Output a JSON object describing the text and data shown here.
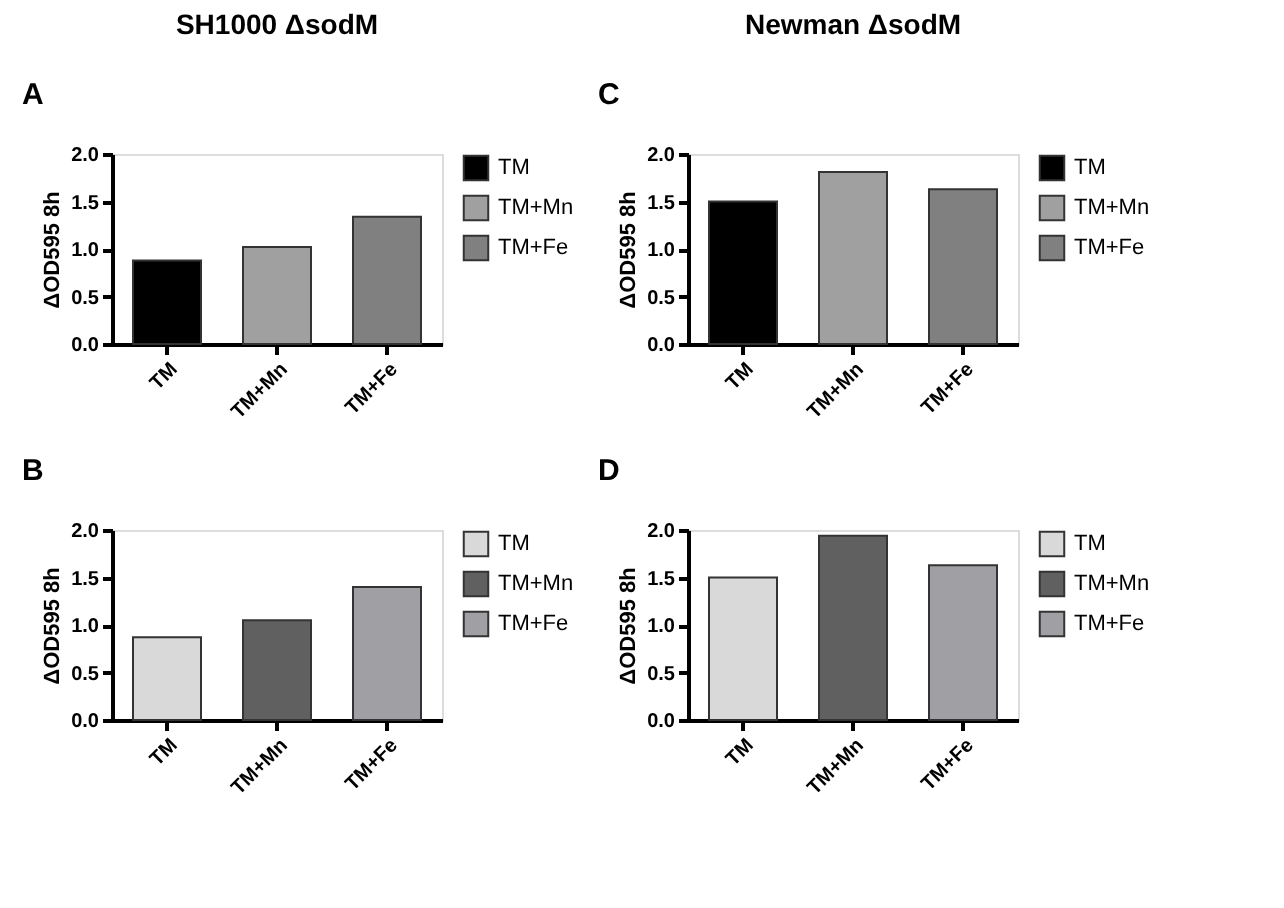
{
  "chart_data": [
    {
      "type": "bar",
      "title": "SH1000 ΔsodM",
      "annotations": [
        "A"
      ],
      "ylabel": "ΔOD595 8h",
      "categories": [
        "TM",
        "TM+Mn",
        "TM+Fe"
      ],
      "ylim": [
        0,
        2
      ],
      "yticks": [
        {
          "value": 0,
          "label": "0.0"
        },
        {
          "value": 0.5,
          "label": "0.5"
        },
        {
          "value": 1,
          "label": "1.0"
        },
        {
          "value": 1.5,
          "label": "1.5"
        },
        {
          "value": 2,
          "label": "2.0"
        }
      ],
      "grid": false,
      "legend": "right",
      "series": [
        {
          "name": "TM",
          "color": "#000000",
          "values": [
            0.88,
            null,
            null
          ]
        },
        {
          "name": "TM+Mn",
          "color": "#a0a0a0",
          "values": [
            null,
            1.02,
            null
          ]
        },
        {
          "name": "TM+Fe",
          "color": "#808080",
          "values": [
            null,
            null,
            1.34
          ]
        }
      ]
    },
    {
      "type": "bar",
      "annotations": [
        "B"
      ],
      "ylabel": "ΔOD595 8h",
      "categories": [
        "TM",
        "TM+Mn",
        "TM+Fe"
      ],
      "ylim": [
        0,
        2
      ],
      "yticks": [
        {
          "value": 0,
          "label": "0.0"
        },
        {
          "value": 0.5,
          "label": "0.5"
        },
        {
          "value": 1,
          "label": "1.0"
        },
        {
          "value": 1.5,
          "label": "1.5"
        },
        {
          "value": 2,
          "label": "2.0"
        }
      ],
      "grid": false,
      "legend": "right",
      "series": [
        {
          "name": "TM",
          "color": "#d9d9d9",
          "values": [
            0.87,
            null,
            null
          ]
        },
        {
          "name": "TM+Mn",
          "color": "#606060",
          "values": [
            null,
            1.05,
            null
          ]
        },
        {
          "name": "TM+Fe",
          "color": "#a0a0a4",
          "values": [
            null,
            null,
            1.4
          ]
        }
      ]
    },
    {
      "type": "bar",
      "title": "Newman ΔsodM",
      "annotations": [
        "C"
      ],
      "ylabel": "ΔOD595 8h",
      "categories": [
        "TM",
        "TM+Mn",
        "TM+Fe"
      ],
      "ylim": [
        0,
        2
      ],
      "yticks": [
        {
          "value": 0,
          "label": "0.0"
        },
        {
          "value": 0.5,
          "label": "0.5"
        },
        {
          "value": 1,
          "label": "1.0"
        },
        {
          "value": 1.5,
          "label": "1.5"
        },
        {
          "value": 2,
          "label": "2.0"
        }
      ],
      "grid": false,
      "legend": "right",
      "series": [
        {
          "name": "TM",
          "color": "#000000",
          "values": [
            1.5,
            null,
            null
          ]
        },
        {
          "name": "TM+Mn",
          "color": "#a0a0a0",
          "values": [
            null,
            1.81,
            null
          ]
        },
        {
          "name": "TM+Fe",
          "color": "#808080",
          "values": [
            null,
            null,
            1.63
          ]
        }
      ]
    },
    {
      "type": "bar",
      "annotations": [
        "D"
      ],
      "ylabel": "ΔOD595 8h",
      "categories": [
        "TM",
        "TM+Mn",
        "TM+Fe"
      ],
      "ylim": [
        0,
        2
      ],
      "yticks": [
        {
          "value": 0,
          "label": "0.0"
        },
        {
          "value": 0.5,
          "label": "0.5"
        },
        {
          "value": 1,
          "label": "1.0"
        },
        {
          "value": 1.5,
          "label": "1.5"
        },
        {
          "value": 2,
          "label": "2.0"
        }
      ],
      "grid": false,
      "legend": "right",
      "series": [
        {
          "name": "TM",
          "color": "#d9d9d9",
          "values": [
            1.5,
            null,
            null
          ]
        },
        {
          "name": "TM+Mn",
          "color": "#606060",
          "values": [
            null,
            1.94,
            null
          ]
        },
        {
          "name": "TM+Fe",
          "color": "#a0a0a4",
          "values": [
            null,
            null,
            1.63
          ]
        }
      ]
    }
  ]
}
